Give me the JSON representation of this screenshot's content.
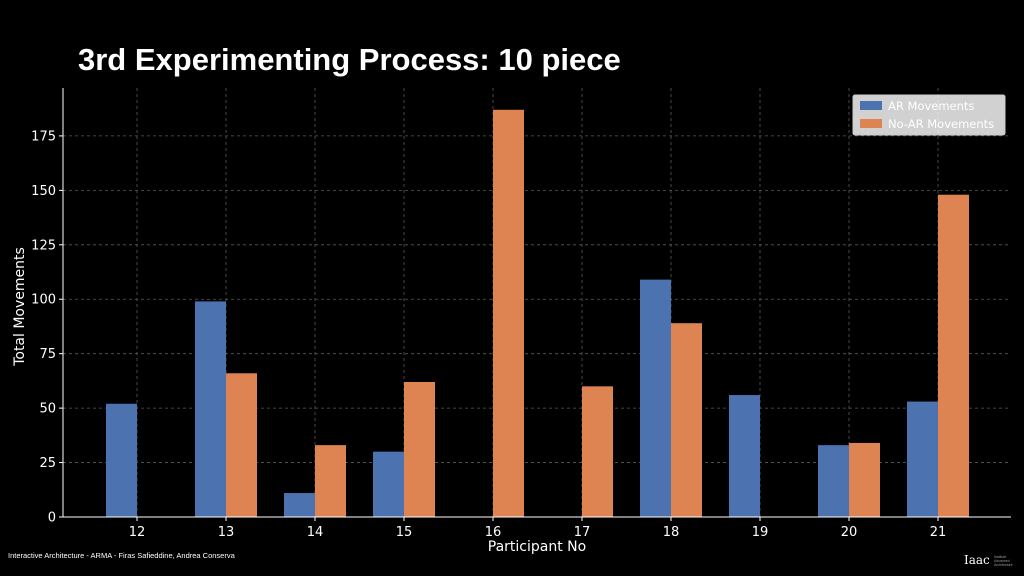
{
  "slide": {
    "title": "3rd Experimenting Process: 10 piece",
    "footer": "Interactive Architecture - ARMA - Firas Safieddine, Andrea Conserva",
    "logo_text": "Iaac",
    "logo_subtext": "Institute Advanced Architecture"
  },
  "chart_data": {
    "type": "bar",
    "title": "",
    "xlabel": "Participant No",
    "ylabel": "Total Movements",
    "categories": [
      "12",
      "13",
      "14",
      "15",
      "16",
      "17",
      "18",
      "19",
      "20",
      "21"
    ],
    "series": [
      {
        "name": "AR Movements",
        "color": "#4c72b0",
        "values": [
          52,
          99,
          11,
          30,
          0,
          0,
          109,
          56,
          33,
          53
        ]
      },
      {
        "name": "No-AR Movements",
        "color": "#dd8452",
        "values": [
          0,
          66,
          33,
          62,
          187,
          60,
          89,
          0,
          34,
          148
        ]
      }
    ],
    "ylim": [
      0,
      197
    ],
    "yticks": [
      0,
      25,
      50,
      75,
      100,
      125,
      150,
      175
    ],
    "grid": true,
    "legend_position": "top-right"
  }
}
